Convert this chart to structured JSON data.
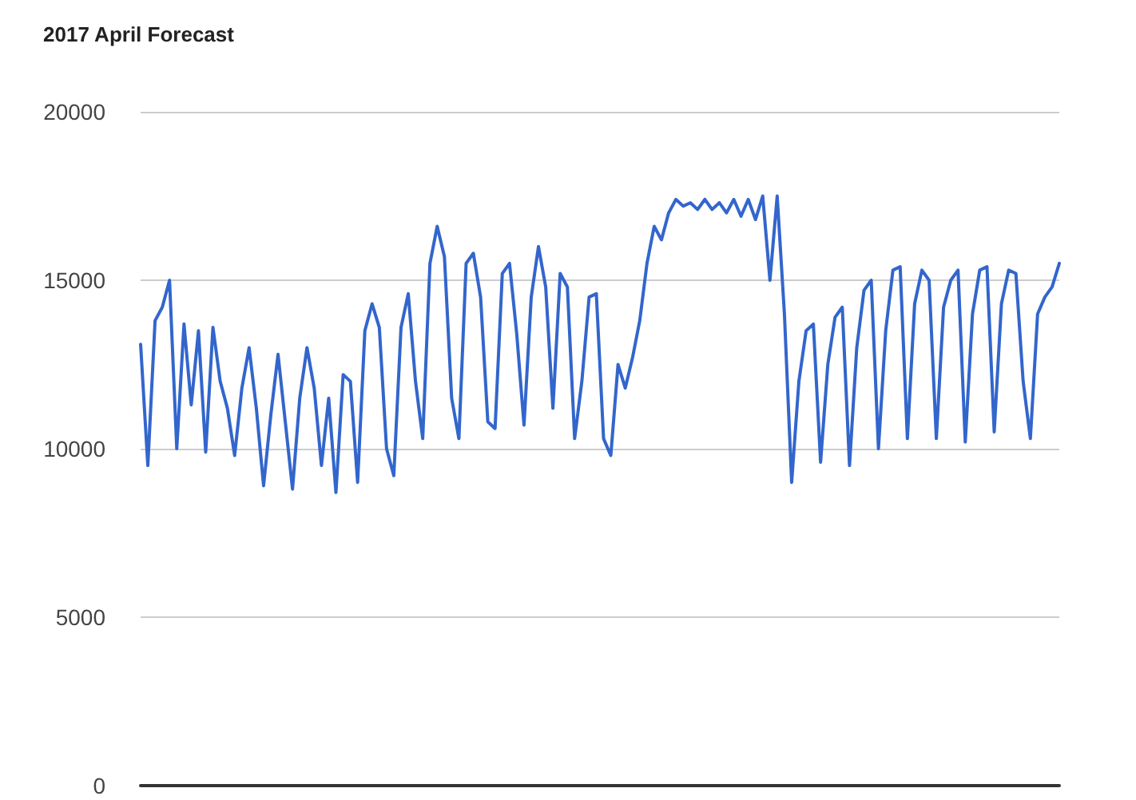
{
  "chart_data": {
    "type": "line",
    "title": "2017 April Forecast",
    "categories": [
      null,
      null,
      null,
      null,
      null,
      null,
      null,
      null,
      null,
      null,
      null,
      null,
      null,
      null,
      null,
      null,
      null,
      null,
      null,
      null,
      null,
      null,
      null,
      null,
      null,
      null,
      null,
      null,
      null,
      null,
      null,
      null,
      null,
      null,
      null,
      null,
      null,
      null,
      null,
      null,
      null,
      null,
      null,
      null,
      null,
      null,
      null,
      null,
      null,
      null,
      null,
      null,
      null,
      null,
      null,
      null,
      null,
      null,
      null,
      null,
      null,
      null,
      null,
      null,
      null,
      null,
      null,
      null,
      null,
      null,
      null,
      null,
      null,
      null,
      null,
      null,
      null,
      null,
      null,
      null,
      null,
      null,
      null,
      null,
      null,
      null,
      null,
      null,
      null,
      null,
      null,
      null,
      null,
      null,
      null,
      null,
      null,
      null,
      null,
      null,
      null,
      null,
      null,
      null,
      null,
      null,
      null,
      null,
      null,
      null,
      null,
      null,
      null,
      null,
      null,
      null,
      null,
      null,
      null,
      null,
      null,
      null,
      null,
      null,
      null,
      null,
      null,
      null
    ],
    "series": [
      {
        "color": "#3366cc",
        "values": [
          13100,
          9500,
          13800,
          14200,
          15000,
          10000,
          13700,
          11300,
          13500,
          9900,
          13600,
          12000,
          11200,
          9800,
          11800,
          13000,
          11200,
          8900,
          11000,
          12800,
          10800,
          8800,
          11500,
          13000,
          11800,
          9500,
          11500,
          8700,
          12200,
          12000,
          9000,
          13500,
          14300,
          13600,
          10000,
          9200,
          13600,
          14600,
          12000,
          10300,
          15500,
          16600,
          15700,
          11500,
          10300,
          15500,
          15800,
          14500,
          10800,
          10600,
          15200,
          15500,
          13400,
          10700,
          14500,
          16000,
          14800,
          11200,
          15200,
          14800,
          10300,
          12000,
          14500,
          14600,
          10300,
          9800,
          12500,
          11800,
          12700,
          13800,
          15500,
          16600,
          16200,
          17000,
          17400,
          17200,
          17300,
          17100,
          17400,
          17100,
          17300,
          17000,
          17400,
          16900,
          17400,
          16800,
          17500,
          15000,
          17500,
          14000,
          9000,
          12000,
          13500,
          13700,
          9600,
          12500,
          13900,
          14200,
          9500,
          13000,
          14700,
          15000,
          10000,
          13500,
          15300,
          15400,
          10300,
          14300,
          15300,
          15000,
          10300,
          14200,
          15000,
          15300,
          10200,
          14000,
          15300,
          15400,
          10500,
          14300,
          15300,
          15200,
          12000,
          10300,
          14000,
          14500,
          14800,
          15500
        ]
      }
    ],
    "ylim": [
      0,
      20000
    ],
    "yticks": [
      0,
      5000,
      10000,
      15000,
      20000
    ],
    "grid": "y",
    "tick_labels": "y",
    "line_style": "solid"
  }
}
